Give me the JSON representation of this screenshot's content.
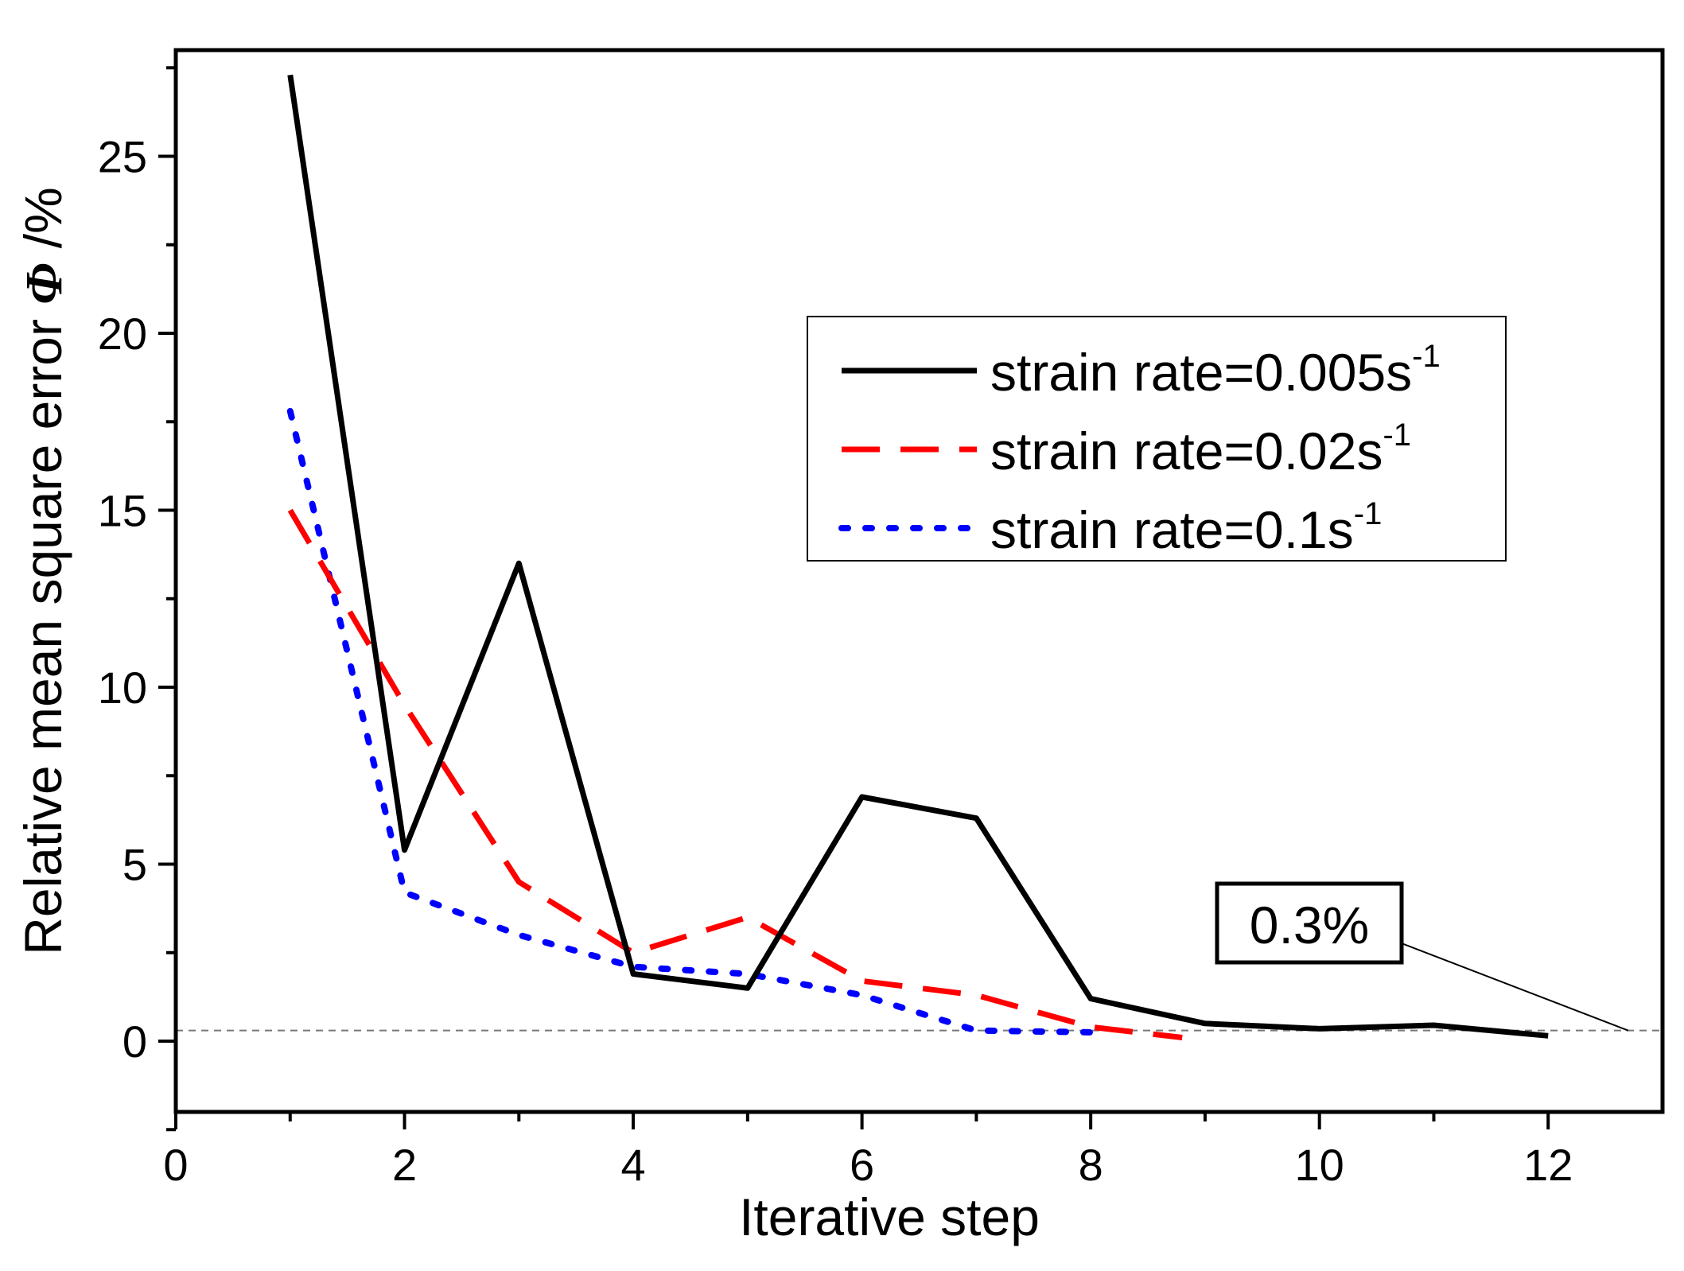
{
  "chart_data": {
    "type": "line",
    "title": "",
    "xlabel": "Iterative step",
    "ylabel": {
      "prefix": "Relative mean square error ",
      "symbol": "Φ",
      "suffix": " /%"
    },
    "xlim": [
      0,
      13
    ],
    "ylim": [
      -2,
      28
    ],
    "x_major_ticks": [
      0,
      2,
      4,
      6,
      8,
      10,
      12
    ],
    "x_tick_labels": [
      "0",
      "2",
      "4",
      "6",
      "8",
      "10",
      "12"
    ],
    "x_minor_ticks": [
      1,
      3,
      5,
      7,
      9,
      11
    ],
    "y_major_ticks": [
      0,
      5,
      10,
      15,
      20,
      25
    ],
    "y_tick_labels": [
      "0",
      "5",
      "10",
      "15",
      "20",
      "25"
    ],
    "y_minor_ticks": [
      -2.5,
      2.5,
      7.5,
      12.5,
      17.5,
      22.5,
      27.5
    ],
    "grid": false,
    "reference_line": {
      "y": 0.3,
      "style": "dashed",
      "color": "#777777"
    },
    "series": [
      {
        "name": "strain rate=0.005s",
        "name_sup": "-1",
        "color": "#000000",
        "style": "solid",
        "x": [
          1,
          2,
          3,
          4,
          5,
          6,
          7,
          8,
          9,
          10,
          11,
          12
        ],
        "values": [
          27.3,
          5.4,
          13.5,
          1.9,
          1.5,
          6.9,
          6.3,
          1.2,
          0.5,
          0.35,
          0.45,
          0.15
        ]
      },
      {
        "name": "strain rate=0.02s",
        "name_sup": "-1",
        "color": "#ff0000",
        "style": "dashed",
        "x": [
          1,
          2,
          3,
          4,
          5,
          6,
          7,
          8,
          8.8
        ],
        "values": [
          15.0,
          9.5,
          4.5,
          2.5,
          3.5,
          1.7,
          1.3,
          0.4,
          0.1
        ]
      },
      {
        "name": "strain rate=0.1s",
        "name_sup": "-1",
        "color": "#0000ff",
        "style": "dotted",
        "x": [
          1,
          2,
          3,
          4,
          5,
          6,
          7,
          8
        ],
        "values": [
          17.8,
          4.2,
          3.0,
          2.1,
          1.9,
          1.3,
          0.3,
          0.25
        ]
      }
    ],
    "legend_position": "upper-right",
    "annotation": {
      "text": "0.3%",
      "points_to": {
        "x": 12.7,
        "y": 0.3
      }
    }
  }
}
